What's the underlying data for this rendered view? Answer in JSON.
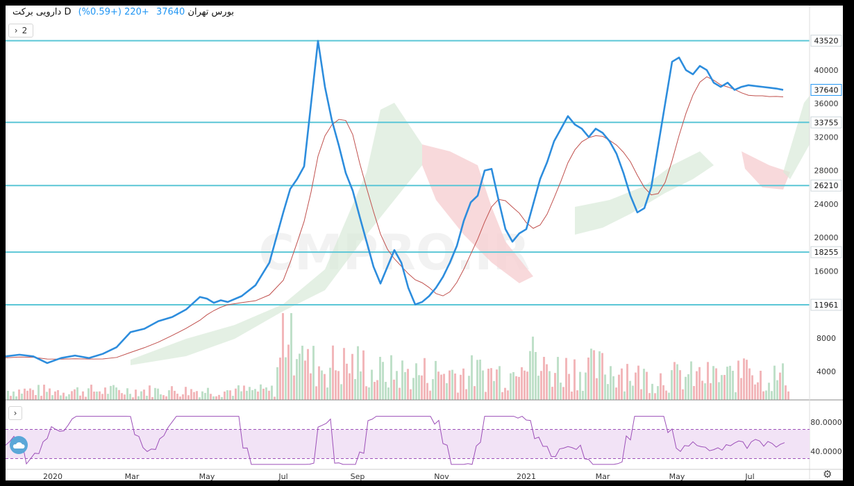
{
  "header": {
    "symbol": "دارویی برکت",
    "interval": "D",
    "exchange": "بورس تهران",
    "price": "37640",
    "change": "+220 (+0.59%)"
  },
  "controls": {
    "collapse_main": "2",
    "collapse_rsi_icon": "chevron-right-icon",
    "settings_icon": "gear-icon"
  },
  "colors": {
    "price_line": "#2d8ddd",
    "base_line": "#c0504d",
    "cloud_green": "#d8ead8",
    "cloud_red": "#f6d0d2",
    "levels": "#5bc6d6",
    "vol_green": "#bfe0c9",
    "vol_red": "#f2b7ba",
    "rsi_line": "#9c4fb8",
    "rsi_band": "#f2e3f6"
  },
  "watermark": "CMPRO.IR",
  "chart_data": {
    "type": "line",
    "price_axis_ticks": [
      "40000",
      "36000",
      "32000",
      "28000",
      "24000",
      "20000",
      "16000",
      "8000",
      "4000"
    ],
    "time_axis_labels": [
      "2020",
      "Mar",
      "May",
      "Jul",
      "Sep",
      "Nov",
      "2021",
      "Mar",
      "May",
      "Jul"
    ],
    "levels": [
      {
        "label": "43520",
        "value": 43520
      },
      {
        "label": "33755",
        "value": 33755
      },
      {
        "label": "26210",
        "value": 26210
      },
      {
        "label": "18255",
        "value": 18255
      },
      {
        "label": "11961",
        "value": 11961
      }
    ],
    "last_price_label": "37640",
    "price_series": {
      "x": [
        0,
        20,
        40,
        60,
        80,
        100,
        120,
        140,
        160,
        180,
        200,
        220,
        240,
        260,
        280,
        290,
        300,
        310,
        320,
        340,
        360,
        380,
        400,
        410,
        420,
        430,
        440,
        450,
        460,
        470,
        480,
        490,
        500,
        510,
        520,
        530,
        540,
        550,
        560,
        570,
        580,
        590,
        600,
        610,
        620,
        630,
        640,
        650,
        660,
        670,
        680,
        690,
        700,
        710,
        720,
        730,
        740,
        750,
        760,
        770,
        780,
        790,
        800,
        810,
        820,
        830,
        840,
        850,
        860,
        870,
        880,
        890,
        900,
        910,
        920,
        930,
        940,
        950,
        960,
        970,
        980,
        990,
        1000,
        1010,
        1020,
        1030,
        1040,
        1050,
        1060,
        1070,
        1080,
        1090,
        1100,
        1110,
        1120
      ],
      "y": [
        5800,
        6000,
        5800,
        5000,
        5600,
        5900,
        5600,
        6100,
        6900,
        8700,
        9100,
        10000,
        10500,
        11400,
        12900,
        12700,
        12200,
        12500,
        12300,
        13000,
        14300,
        17000,
        23000,
        25800,
        27000,
        28500,
        36000,
        43500,
        38000,
        34000,
        31000,
        27700,
        25600,
        22500,
        19500,
        16500,
        14500,
        16500,
        18500,
        17000,
        14000,
        12000,
        12300,
        13000,
        14000,
        15300,
        17000,
        19000,
        22000,
        24200,
        25000,
        28000,
        28200,
        24500,
        21000,
        19500,
        20500,
        21000,
        24000,
        27000,
        29000,
        31500,
        33000,
        34500,
        33500,
        33000,
        32000,
        33000,
        32500,
        31500,
        30000,
        27700,
        25000,
        23000,
        23500,
        26000,
        31000,
        36000,
        41000,
        41500,
        40000,
        39500,
        40500,
        40000,
        38500,
        38000,
        38500,
        37640,
        38000,
        38200,
        38100,
        38000,
        37900,
        37800,
        37640
      ],
      "y_note": "piecewise estimate read from chart"
    },
    "rsi": {
      "ticks": [
        "80.0000",
        "40.0000"
      ],
      "upper": 70,
      "lower": 30
    }
  }
}
